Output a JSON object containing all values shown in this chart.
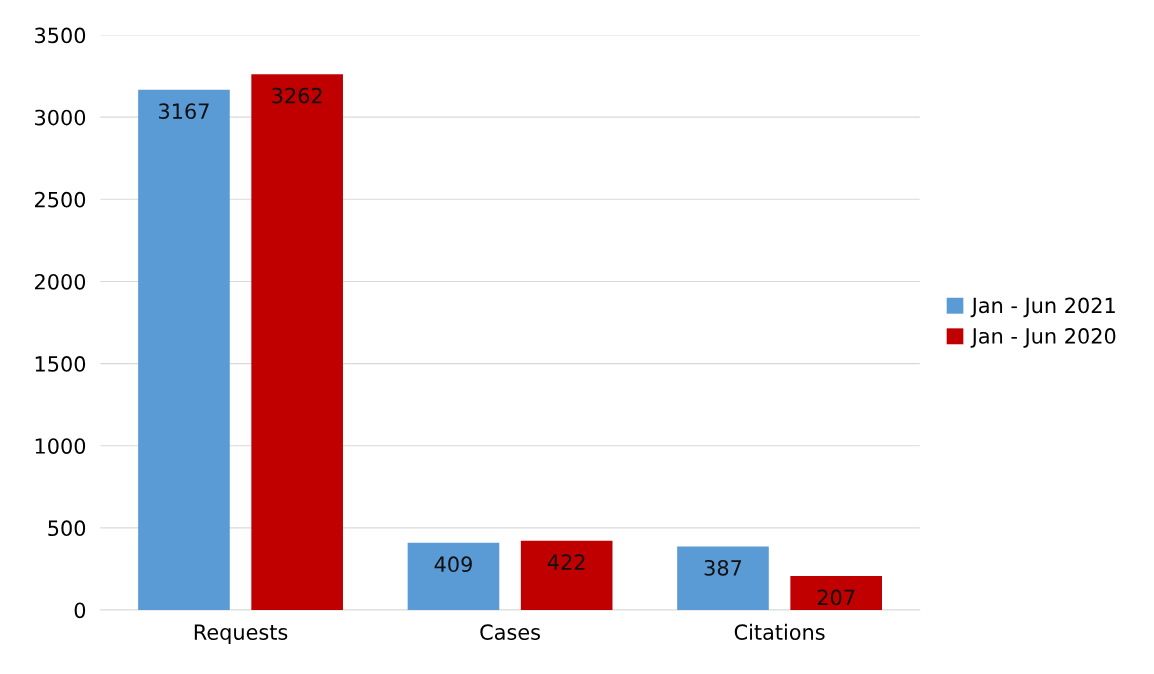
{
  "chart_data": {
    "type": "bar",
    "categories": [
      "Requests",
      "Cases",
      "Citations"
    ],
    "series": [
      {
        "name": "Jan - Jun 2021",
        "color": "#5b9bd5",
        "values": [
          3167,
          409,
          387
        ]
      },
      {
        "name": "Jan - Jun 2020",
        "color": "#c00000",
        "values": [
          3262,
          422,
          207
        ]
      }
    ],
    "ylim": [
      0,
      3500
    ],
    "yticks": [
      0,
      500,
      1000,
      1500,
      2000,
      2500,
      3000,
      3500
    ],
    "grid": "y",
    "legend": "right",
    "data_labels": true
  }
}
